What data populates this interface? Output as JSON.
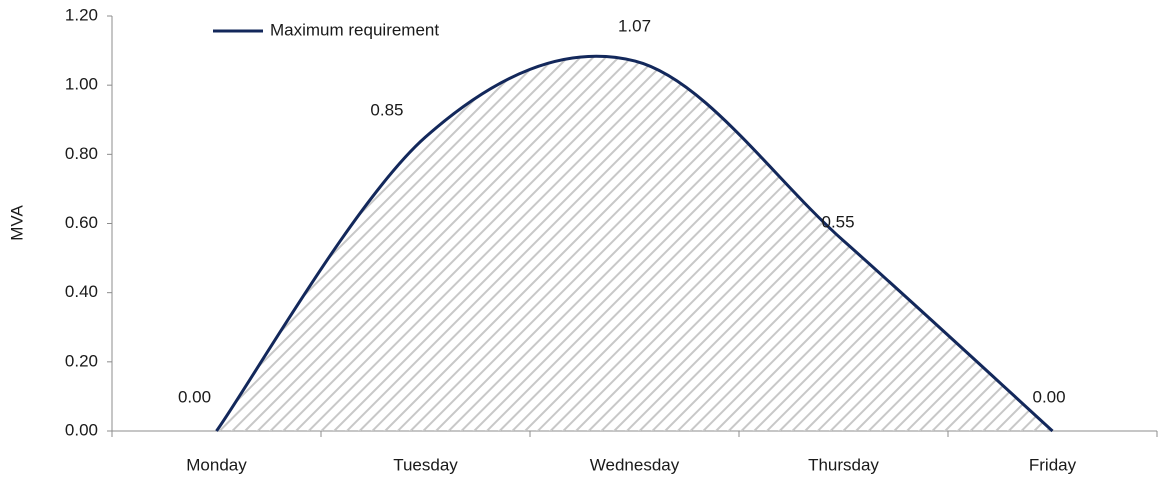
{
  "chart_data": {
    "type": "line",
    "y_label": "MVA",
    "categories": [
      "Monday",
      "Tuesday",
      "Wednesday",
      "Thursday",
      "Friday"
    ],
    "series": [
      {
        "name": "Maximum requirement",
        "color": "#13285b",
        "values": [
          0,
          0.85,
          1.07,
          0.55,
          0
        ],
        "value_labels": [
          "0.00",
          "0.85",
          "1.07",
          "0.55",
          "0.00"
        ]
      }
    ],
    "area_fill": "#c8c8c8",
    "smooth": true,
    "legend": "top-left",
    "ylim": [
      0,
      1.2
    ],
    "yticks": [
      {
        "value": 0,
        "label": "0.00"
      },
      {
        "value": 0.2,
        "label": "0.20"
      },
      {
        "value": 0.4,
        "label": "0.40"
      },
      {
        "value": 0.6,
        "label": "0.60"
      },
      {
        "value": 0.8,
        "label": "0.80"
      },
      {
        "value": 1.0,
        "label": "1.00"
      },
      {
        "value": 1.2,
        "label": "1.20"
      }
    ]
  }
}
